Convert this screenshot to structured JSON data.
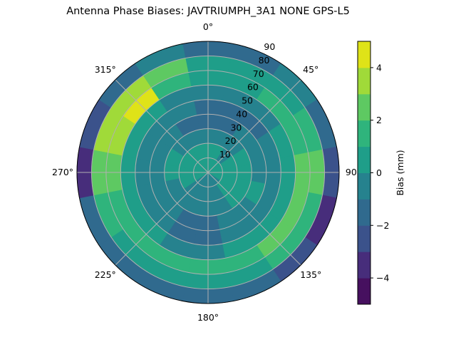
{
  "chart_data": {
    "type": "heatmap",
    "subtype": "polar-contour",
    "title": "Antenna Phase Biases: JAVTRIUMPH_3A1  NONE GPS-L5",
    "theta_direction": "clockwise",
    "theta_zero": "north",
    "theta_tick_labels": [
      "0°",
      "45°",
      "90°",
      "135°",
      "180°",
      "225°",
      "270°",
      "315°"
    ],
    "theta_tick_values": [
      0,
      45,
      90,
      135,
      180,
      225,
      270,
      315
    ],
    "r_tick_labels": [
      "10",
      "20",
      "30",
      "40",
      "50",
      "60",
      "70",
      "80",
      "90"
    ],
    "r_tick_values": [
      10,
      20,
      30,
      40,
      50,
      60,
      70,
      80,
      90
    ],
    "rlim": [
      0,
      90
    ],
    "grid": true,
    "azimuths": [
      0,
      22.5,
      45,
      67.5,
      90,
      112.5,
      135,
      157.5,
      180,
      202.5,
      225,
      247.5,
      270,
      292.5,
      315,
      337.5
    ],
    "zenith_bins": [
      [
        0,
        10
      ],
      [
        10,
        20
      ],
      [
        20,
        30
      ],
      [
        30,
        40
      ],
      [
        40,
        50
      ],
      [
        50,
        60
      ],
      [
        60,
        70
      ],
      [
        70,
        80
      ],
      [
        80,
        90
      ]
    ],
    "values": [
      [
        0.5,
        0.5,
        0.5,
        0.5,
        0.5,
        0.5,
        -0.5,
        -0.5,
        -0.5,
        -0.5,
        -0.5,
        0.5,
        0.5,
        0.5,
        0.5,
        0.5
      ],
      [
        0.5,
        0.5,
        -0.5,
        0.5,
        0.5,
        0.5,
        0.5,
        -0.5,
        -0.5,
        -0.5,
        -0.5,
        0.5,
        0.5,
        0.5,
        0.5,
        0.5
      ],
      [
        -0.5,
        -0.5,
        -0.5,
        0.5,
        0.5,
        0.5,
        0.5,
        -0.5,
        -0.5,
        -0.5,
        -0.5,
        -0.5,
        0.5,
        0.5,
        -0.5,
        -0.5
      ],
      [
        -1.5,
        -1.5,
        -0.5,
        -0.5,
        -0.5,
        0.5,
        -0.5,
        -0.5,
        -1.5,
        -1.5,
        -0.5,
        -0.5,
        -0.5,
        -0.5,
        -0.5,
        -1.5
      ],
      [
        -1.5,
        -1.5,
        -1.5,
        -0.5,
        -0.5,
        -0.5,
        -0.5,
        -0.5,
        -1.5,
        -1.5,
        -0.5,
        -0.5,
        -0.5,
        -0.5,
        -0.5,
        -0.5
      ],
      [
        -0.5,
        -0.5,
        -0.5,
        0.5,
        0.5,
        0.5,
        0.5,
        0.5,
        -0.5,
        -0.5,
        0.5,
        0.5,
        0.5,
        0.5,
        0.5,
        -0.5
      ],
      [
        0.5,
        0.5,
        1.5,
        1.5,
        2.5,
        2.5,
        2.5,
        1.5,
        1.5,
        1.5,
        1.5,
        1.5,
        2.5,
        3.5,
        4.5,
        1.5
      ],
      [
        0.5,
        0.5,
        0.5,
        1.5,
        2.5,
        1.5,
        1.5,
        0.5,
        0.5,
        0.5,
        0.5,
        1.5,
        2.5,
        3.5,
        3.5,
        2.5
      ],
      [
        -1.5,
        -1.5,
        -0.5,
        -1.5,
        -2.5,
        -3.5,
        -2.5,
        -1.5,
        -1.5,
        -1.5,
        -1.5,
        -1.5,
        -3.5,
        -2.5,
        -1.5,
        -0.5
      ]
    ],
    "colorbar": {
      "label": "Bias (mm)",
      "levels": [
        -5,
        -4,
        -3,
        -2,
        -1,
        0,
        1,
        2,
        3,
        4,
        5
      ],
      "tick_values": [
        -4,
        -2,
        0,
        2,
        4
      ],
      "tick_labels": [
        "−4",
        "−2",
        "0",
        "2",
        "4"
      ],
      "colors": [
        "#46105f",
        "#472d7b",
        "#3b528b",
        "#306a8e",
        "#26828e",
        "#1f9e89",
        "#2fb47c",
        "#5ec962",
        "#a0da39",
        "#dfe318"
      ]
    }
  }
}
